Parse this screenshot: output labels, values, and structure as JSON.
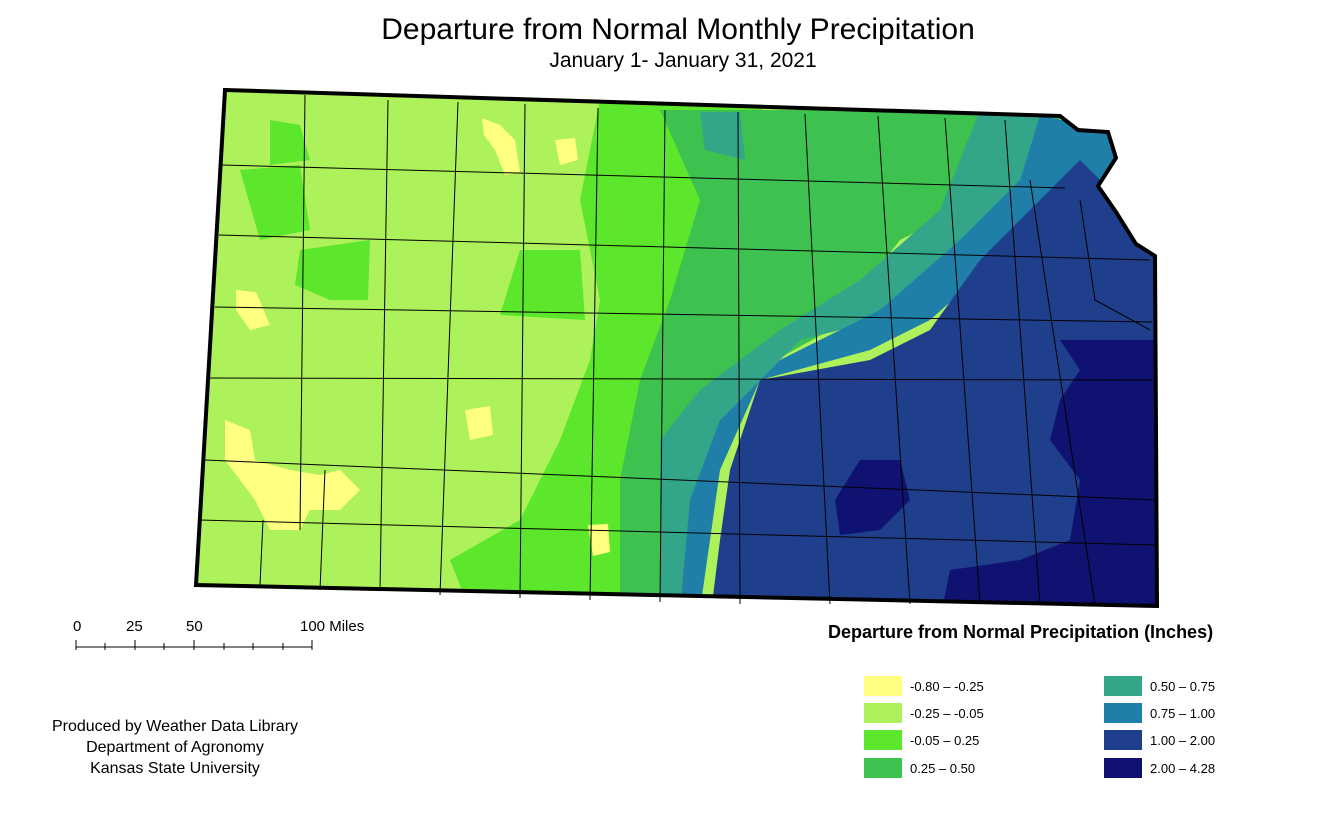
{
  "title": "Departure from Normal Monthly Precipitation",
  "subtitle": "January 1- January 31, 2021",
  "scale_bar": {
    "labels": [
      "0",
      "25",
      "50",
      "100 Miles"
    ]
  },
  "credits": {
    "line1": "Produced by Weather Data Library",
    "line2": "Department of Agronomy",
    "line3": "Kansas State University"
  },
  "legend": {
    "title": "Departure from Normal Precipitation (Inches)",
    "classes": [
      {
        "label": "-0.80 – -0.25",
        "color": "#FFFF80"
      },
      {
        "label": "-0.25 – -0.05",
        "color": "#ADF25A"
      },
      {
        "label": "-0.05 – 0.25",
        "color": "#5CE62C"
      },
      {
        "label": "0.25 – 0.50",
        "color": "#3DC24F"
      },
      {
        "label": "0.50 – 0.75",
        "color": "#33A68A"
      },
      {
        "label": "0.75 – 1.00",
        "color": "#1F7FA8"
      },
      {
        "label": "1.00 – 2.00",
        "color": "#1F3F8C"
      },
      {
        "label": "2.00 – 4.28",
        "color": "#0F1270"
      }
    ]
  }
}
